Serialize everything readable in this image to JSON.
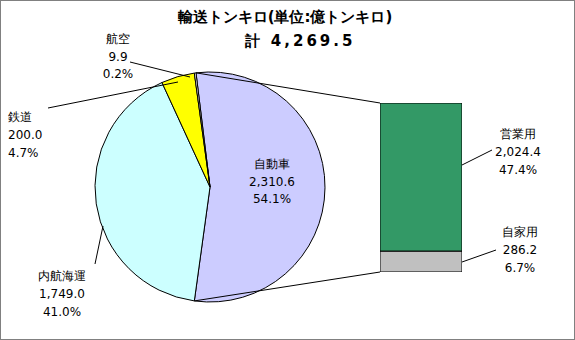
{
  "chart_data": [
    {
      "type": "pie",
      "title": "輸送トンキロ(単位:億トンキロ)",
      "subtitle": "計 4,269.5",
      "categories": [
        "自動車",
        "内航海運",
        "鉄道",
        "航空"
      ],
      "values": [
        2310.6,
        1749.0,
        200.0,
        9.9
      ],
      "value_labels": [
        "2,310.6",
        "1,749.0",
        "200.0",
        "9.9"
      ],
      "percent_labels": [
        "54.1%",
        "41.0%",
        "4.7%",
        "0.2%"
      ],
      "colors": [
        "#ccccff",
        "#ccffff",
        "#ffff00",
        "#ffffff"
      ],
      "data_labels": true
    },
    {
      "type": "bar",
      "stacked": true,
      "tick_labels": false,
      "series": [
        {
          "name": "営業用",
          "color": "#339966",
          "values": [
            2024.4
          ],
          "value_labels": [
            "2,024.4"
          ],
          "percent_labels": [
            "47.4%"
          ]
        },
        {
          "name": "自家用",
          "color": "#c0c0c0",
          "values": [
            286.2
          ],
          "value_labels": [
            "286.2"
          ],
          "percent_labels": [
            "6.7%"
          ]
        }
      ]
    }
  ]
}
